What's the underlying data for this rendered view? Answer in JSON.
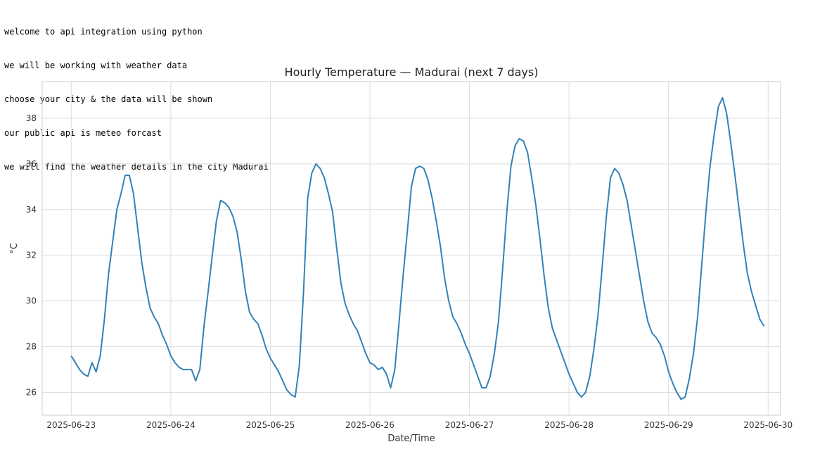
{
  "console": {
    "lines": [
      "welcome to api integration using python",
      "we will be working with weather data",
      "choose your city & the data will be shown",
      "our public api is meteo forcast",
      "we will find the weather details in the city Madurai"
    ]
  },
  "chart_data": {
    "type": "line",
    "title": "Hourly Temperature — Madurai (next 7 days)",
    "xlabel": "Date/Time",
    "ylabel": "°C",
    "x_start": "2025-06-23T00:00",
    "x_step": "1h",
    "xlim": [
      "2025-06-22T17:00",
      "2025-06-30T03:00"
    ],
    "ylim": [
      25.0,
      39.6
    ],
    "x_ticks": [
      "2025-06-23",
      "2025-06-24",
      "2025-06-25",
      "2025-06-26",
      "2025-06-27",
      "2025-06-28",
      "2025-06-29",
      "2025-06-30"
    ],
    "y_ticks": [
      26,
      28,
      30,
      32,
      34,
      36,
      38
    ],
    "grid": true,
    "line_color": "#3282b8",
    "series": [
      {
        "values": [
          27.6,
          27.3,
          27.0,
          26.8,
          26.7,
          27.3,
          26.9,
          27.6,
          29.2,
          31.2,
          32.6,
          34.0,
          34.7,
          35.5,
          35.5,
          34.7,
          33.2,
          31.7,
          30.6,
          29.7,
          29.3,
          29.0,
          28.5,
          28.1,
          27.6,
          27.3,
          27.1,
          27.0,
          27.0,
          27.0,
          26.5,
          27.0,
          28.9,
          30.4,
          32.0,
          33.5,
          34.4,
          34.3,
          34.1,
          33.7,
          33.0,
          31.8,
          30.4,
          29.5,
          29.2,
          29.0,
          28.5,
          27.9,
          27.5,
          27.2,
          26.9,
          26.5,
          26.1,
          25.9,
          25.8,
          27.2,
          30.4,
          34.5,
          35.6,
          36.0,
          35.8,
          35.4,
          34.7,
          33.9,
          32.3,
          30.8,
          29.9,
          29.4,
          29.0,
          28.7,
          28.2,
          27.7,
          27.3,
          27.2,
          27.0,
          27.1,
          26.8,
          26.2,
          27.0,
          29.0,
          31.1,
          33.0,
          35.0,
          35.8,
          35.9,
          35.8,
          35.3,
          34.5,
          33.5,
          32.4,
          31.0,
          30.0,
          29.3,
          29.0,
          28.6,
          28.1,
          27.7,
          27.2,
          26.7,
          26.2,
          26.2,
          26.7,
          27.7,
          29.1,
          31.4,
          33.9,
          35.9,
          36.8,
          37.1,
          37.0,
          36.5,
          35.4,
          34.2,
          32.7,
          31.1,
          29.7,
          28.8,
          28.3,
          27.8,
          27.3,
          26.8,
          26.4,
          26.0,
          25.8,
          26.0,
          26.7,
          27.9,
          29.4,
          31.5,
          33.7,
          35.4,
          35.8,
          35.6,
          35.1,
          34.4,
          33.3,
          32.2,
          31.1,
          30.0,
          29.1,
          28.6,
          28.4,
          28.1,
          27.6,
          26.9,
          26.4,
          26.0,
          25.7,
          25.8,
          26.6,
          27.7,
          29.3,
          31.6,
          33.9,
          35.9,
          37.3,
          38.5,
          38.9,
          38.2,
          36.9,
          35.5,
          34.0,
          32.5,
          31.2,
          30.4,
          29.8,
          29.2,
          28.9
        ]
      }
    ]
  }
}
